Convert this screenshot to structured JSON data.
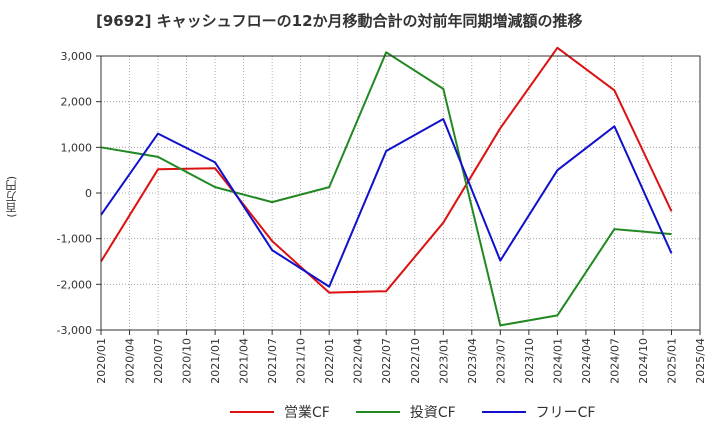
{
  "chart_data": {
    "type": "line",
    "title": "[9692]  キャッシュフローの12か月移動合計の対前年同期増減額の推移",
    "ylabel": "(百万円)",
    "xlabel": "",
    "ylim": [
      -3000,
      3000
    ],
    "yticks": [
      -3000,
      -2000,
      -1000,
      0,
      1000,
      2000,
      3000
    ],
    "ytick_labels": [
      "-3,000",
      "-2,000",
      "-1,000",
      "0",
      "1,000",
      "2,000",
      "3,000"
    ],
    "categories": [
      "2020/01",
      "2020/04",
      "2020/07",
      "2020/10",
      "2021/01",
      "2021/04",
      "2021/07",
      "2021/10",
      "2022/01",
      "2022/04",
      "2022/07",
      "2022/10",
      "2023/01",
      "2023/04",
      "2023/07",
      "2023/10",
      "2024/01",
      "2024/04",
      "2024/07",
      "2024/10",
      "2025/01",
      "2025/04"
    ],
    "series": [
      {
        "name": "営業CF",
        "color": "#dd1111",
        "x": [
          "2020/01",
          "2020/07",
          "2021/01",
          "2021/07",
          "2022/01",
          "2022/07",
          "2023/01",
          "2023/07",
          "2024/01",
          "2024/07",
          "2025/01"
        ],
        "values": [
          -1500,
          520,
          540,
          -1050,
          -2180,
          -2150,
          -650,
          1420,
          3180,
          2250,
          -400
        ]
      },
      {
        "name": "投資CF",
        "color": "#228822",
        "x": [
          "2020/01",
          "2020/07",
          "2021/01",
          "2021/07",
          "2022/01",
          "2022/07",
          "2023/01",
          "2023/07",
          "2024/01",
          "2024/07",
          "2025/01"
        ],
        "values": [
          1000,
          790,
          130,
          -200,
          130,
          3080,
          2280,
          -2900,
          -2680,
          -790,
          -900
        ]
      },
      {
        "name": "フリーCF",
        "color": "#1111cc",
        "x": [
          "2020/01",
          "2020/07",
          "2021/01",
          "2021/07",
          "2022/01",
          "2022/07",
          "2023/01",
          "2023/07",
          "2024/01",
          "2024/07",
          "2025/01"
        ],
        "values": [
          -480,
          1300,
          670,
          -1250,
          -2050,
          920,
          1620,
          -1480,
          500,
          1460,
          -1320
        ]
      }
    ],
    "grid": true,
    "legend": "bottom-center"
  }
}
